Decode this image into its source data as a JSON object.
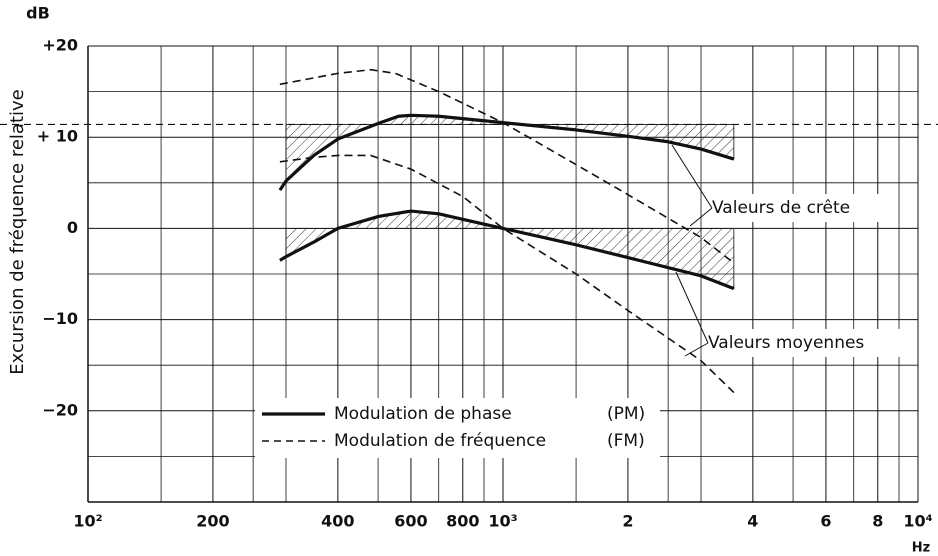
{
  "chart_data": {
    "type": "line",
    "y_label": "Excursion de fréquence relative",
    "y_unit": "dB",
    "x_unit": "Hz",
    "log_x": true,
    "grid": true,
    "xlim": [
      100,
      10000
    ],
    "ylim": [
      -30,
      20
    ],
    "xticks": [
      {
        "value": 100,
        "label": "10²"
      },
      200,
      400,
      600,
      800,
      {
        "value": 1000,
        "label": "10³"
      },
      {
        "value": 2000,
        "label": "2"
      },
      {
        "value": 4000,
        "label": "4"
      },
      {
        "value": 6000,
        "label": "6"
      },
      {
        "value": 8000,
        "label": "8"
      },
      {
        "value": 10000,
        "label": "10⁴"
      }
    ],
    "x_minor_ticks": [
      150,
      250,
      300,
      500,
      700,
      900,
      1500,
      2500,
      3000,
      5000,
      7000,
      9000
    ],
    "yticks": [
      {
        "value": 20,
        "label": "+20"
      },
      {
        "value": 10,
        "label": "+ 10"
      },
      0,
      {
        "value": -10,
        "label": "−10"
      },
      {
        "value": -20,
        "label": "−20"
      }
    ],
    "y_minor_ticks": [
      15,
      5,
      -5,
      -15,
      -25,
      -30
    ],
    "reference_levels": [
      11.4,
      0
    ],
    "hatch_range": [
      300,
      3600
    ],
    "series": [
      {
        "group": "PM",
        "style": "solid",
        "width": 3.2,
        "x": [
          290,
          300,
          350,
          400,
          500,
          560,
          600,
          700,
          1000,
          1500,
          2000,
          2500,
          3000,
          3600
        ],
        "values": [
          4.2,
          5.2,
          8,
          9.8,
          11.5,
          12.3,
          12.4,
          12.3,
          11.6,
          10.8,
          10.1,
          9.5,
          8.7,
          7.6
        ]
      },
      {
        "group": "PM",
        "style": "solid",
        "width": 3.2,
        "x": [
          290,
          300,
          350,
          400,
          500,
          600,
          700,
          800,
          1000,
          1500,
          2000,
          3000,
          3600
        ],
        "values": [
          -3.5,
          -3.1,
          -1.5,
          0,
          1.3,
          1.9,
          1.6,
          1.0,
          0,
          -1.8,
          -3.2,
          -5.2,
          -6.6
        ]
      },
      {
        "group": "FM",
        "style": "dashed",
        "width": 1.6,
        "x": [
          290,
          400,
          480,
          550,
          700,
          1000,
          1500,
          2000,
          3000,
          3600
        ],
        "values": [
          15.8,
          17,
          17.4,
          17,
          15,
          11.6,
          7,
          3.7,
          -1,
          -3.8
        ]
      },
      {
        "group": "FM",
        "style": "dashed",
        "width": 1.6,
        "x": [
          290,
          350,
          400,
          480,
          600,
          800,
          1000,
          1500,
          2000,
          3000,
          3600
        ],
        "values": [
          7.3,
          7.8,
          8,
          8,
          6.5,
          3.5,
          0,
          -5,
          -9,
          -14.5,
          -18
        ]
      }
    ],
    "legend": [
      {
        "text": "Modulation de phase",
        "abbr": "(PM)",
        "style": "solid"
      },
      {
        "text": "Modulation de fréquence",
        "abbr": "(FM)",
        "style": "dashed"
      }
    ],
    "annotations": [
      "Valeurs de crête",
      "Valeurs moyennes"
    ]
  }
}
